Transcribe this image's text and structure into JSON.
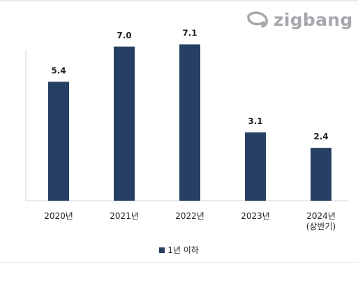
{
  "brand": {
    "name": "zigbang",
    "logo_color": "#a7a7ad"
  },
  "chart_data": {
    "type": "bar",
    "categories": [
      "2020년",
      "2021년",
      "2022년",
      "2023년",
      "2024년\n(상반기)"
    ],
    "values": [
      5.4,
      7.0,
      7.1,
      3.1,
      2.4
    ],
    "value_labels": [
      "5.4",
      "7.0",
      "7.1",
      "3.1",
      "2.4"
    ],
    "series": [
      {
        "name": "1년 이하",
        "values": [
          5.4,
          7.0,
          7.1,
          3.1,
          2.4
        ],
        "color": "#263f62"
      }
    ],
    "title": "",
    "xlabel": "",
    "ylabel": "",
    "ylim": [
      0,
      8.1
    ],
    "grid": false,
    "legend_position": "bottom-center"
  }
}
